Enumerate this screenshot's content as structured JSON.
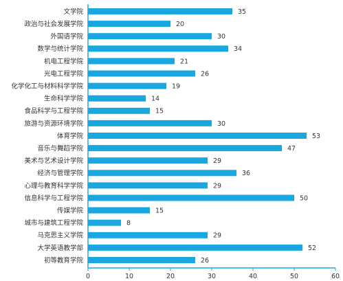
{
  "chart_data": {
    "type": "bar",
    "orientation": "horizontal",
    "categories": [
      "文学院",
      "政治与社会发展学院",
      "外国语学院",
      "数学与统计学院",
      "机电工程学院",
      "光电工程学院",
      "化学化工与材料科学学院",
      "生命科学学院",
      "食品科学与工程学院",
      "旅游与资源环境学院",
      "体育学院",
      "音乐与舞蹈学院",
      "美术与艺术设计学院",
      "经济与管理学院",
      "心理与教育科学学院",
      "信息科学与工程学院",
      "传媒学院",
      "城市与建筑工程学院",
      "马克思主义学院",
      "大学英语教学部",
      "初等教育学院"
    ],
    "values": [
      35,
      20,
      30,
      34,
      21,
      26,
      19,
      14,
      15,
      30,
      53,
      47,
      29,
      36,
      29,
      50,
      15,
      8,
      29,
      52,
      26
    ],
    "xlim": [
      0,
      60
    ],
    "xticks": [
      0,
      10,
      20,
      30,
      40,
      50,
      60
    ],
    "title": "",
    "xlabel": "",
    "ylabel": "",
    "grid": false,
    "legend": "none",
    "data_labels": true,
    "colors": {
      "bar": "#1aa7e0",
      "axis": "#1aa7e0",
      "text": "#333333"
    }
  }
}
